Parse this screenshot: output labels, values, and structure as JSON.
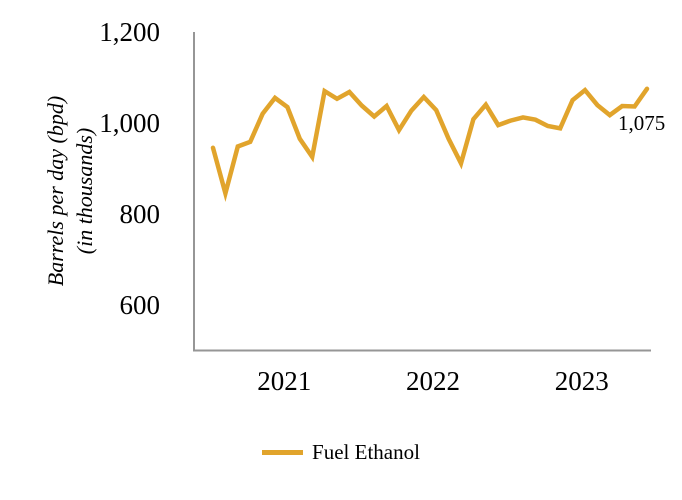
{
  "chart_data": {
    "type": "line",
    "title": "",
    "ylabel_line1": "Barrels per day (bpd)",
    "ylabel_line2": "(in thousands)",
    "ylim": [
      500,
      1200
    ],
    "y_ticks": [
      {
        "value": 1200,
        "label": "1,200"
      },
      {
        "value": 1000,
        "label": "1,000"
      },
      {
        "value": 800,
        "label": "800"
      },
      {
        "value": 600,
        "label": "600"
      }
    ],
    "x_tick_labels": [
      "2021",
      "2022",
      "2023"
    ],
    "points_per_year": 12,
    "grid": false,
    "legend_position": "bottom",
    "series": [
      {
        "name": "Fuel Ethanol",
        "color": "#E1A42C",
        "values": [
          945,
          845,
          948,
          958,
          1020,
          1055,
          1035,
          965,
          925,
          1070,
          1053,
          1068,
          1038,
          1014,
          1037,
          984,
          1027,
          1057,
          1028,
          965,
          911,
          1008,
          1040,
          995,
          1005,
          1012,
          1007,
          993,
          988,
          1050,
          1072,
          1039,
          1017,
          1037,
          1036,
          1075
        ]
      }
    ],
    "last_point_label": "1,075"
  },
  "y_axis": {
    "title_line1": "Barrels per day (bpd)",
    "title_line2": "(in thousands)"
  },
  "legend": {
    "label": "Fuel Ethanol",
    "swatch_color": "#E1A42C"
  },
  "annotation": {
    "text": "1,075"
  },
  "colors": {
    "line": "#E1A42C",
    "axis": "#969696",
    "text": "#000000",
    "background": "#FFFFFF"
  }
}
